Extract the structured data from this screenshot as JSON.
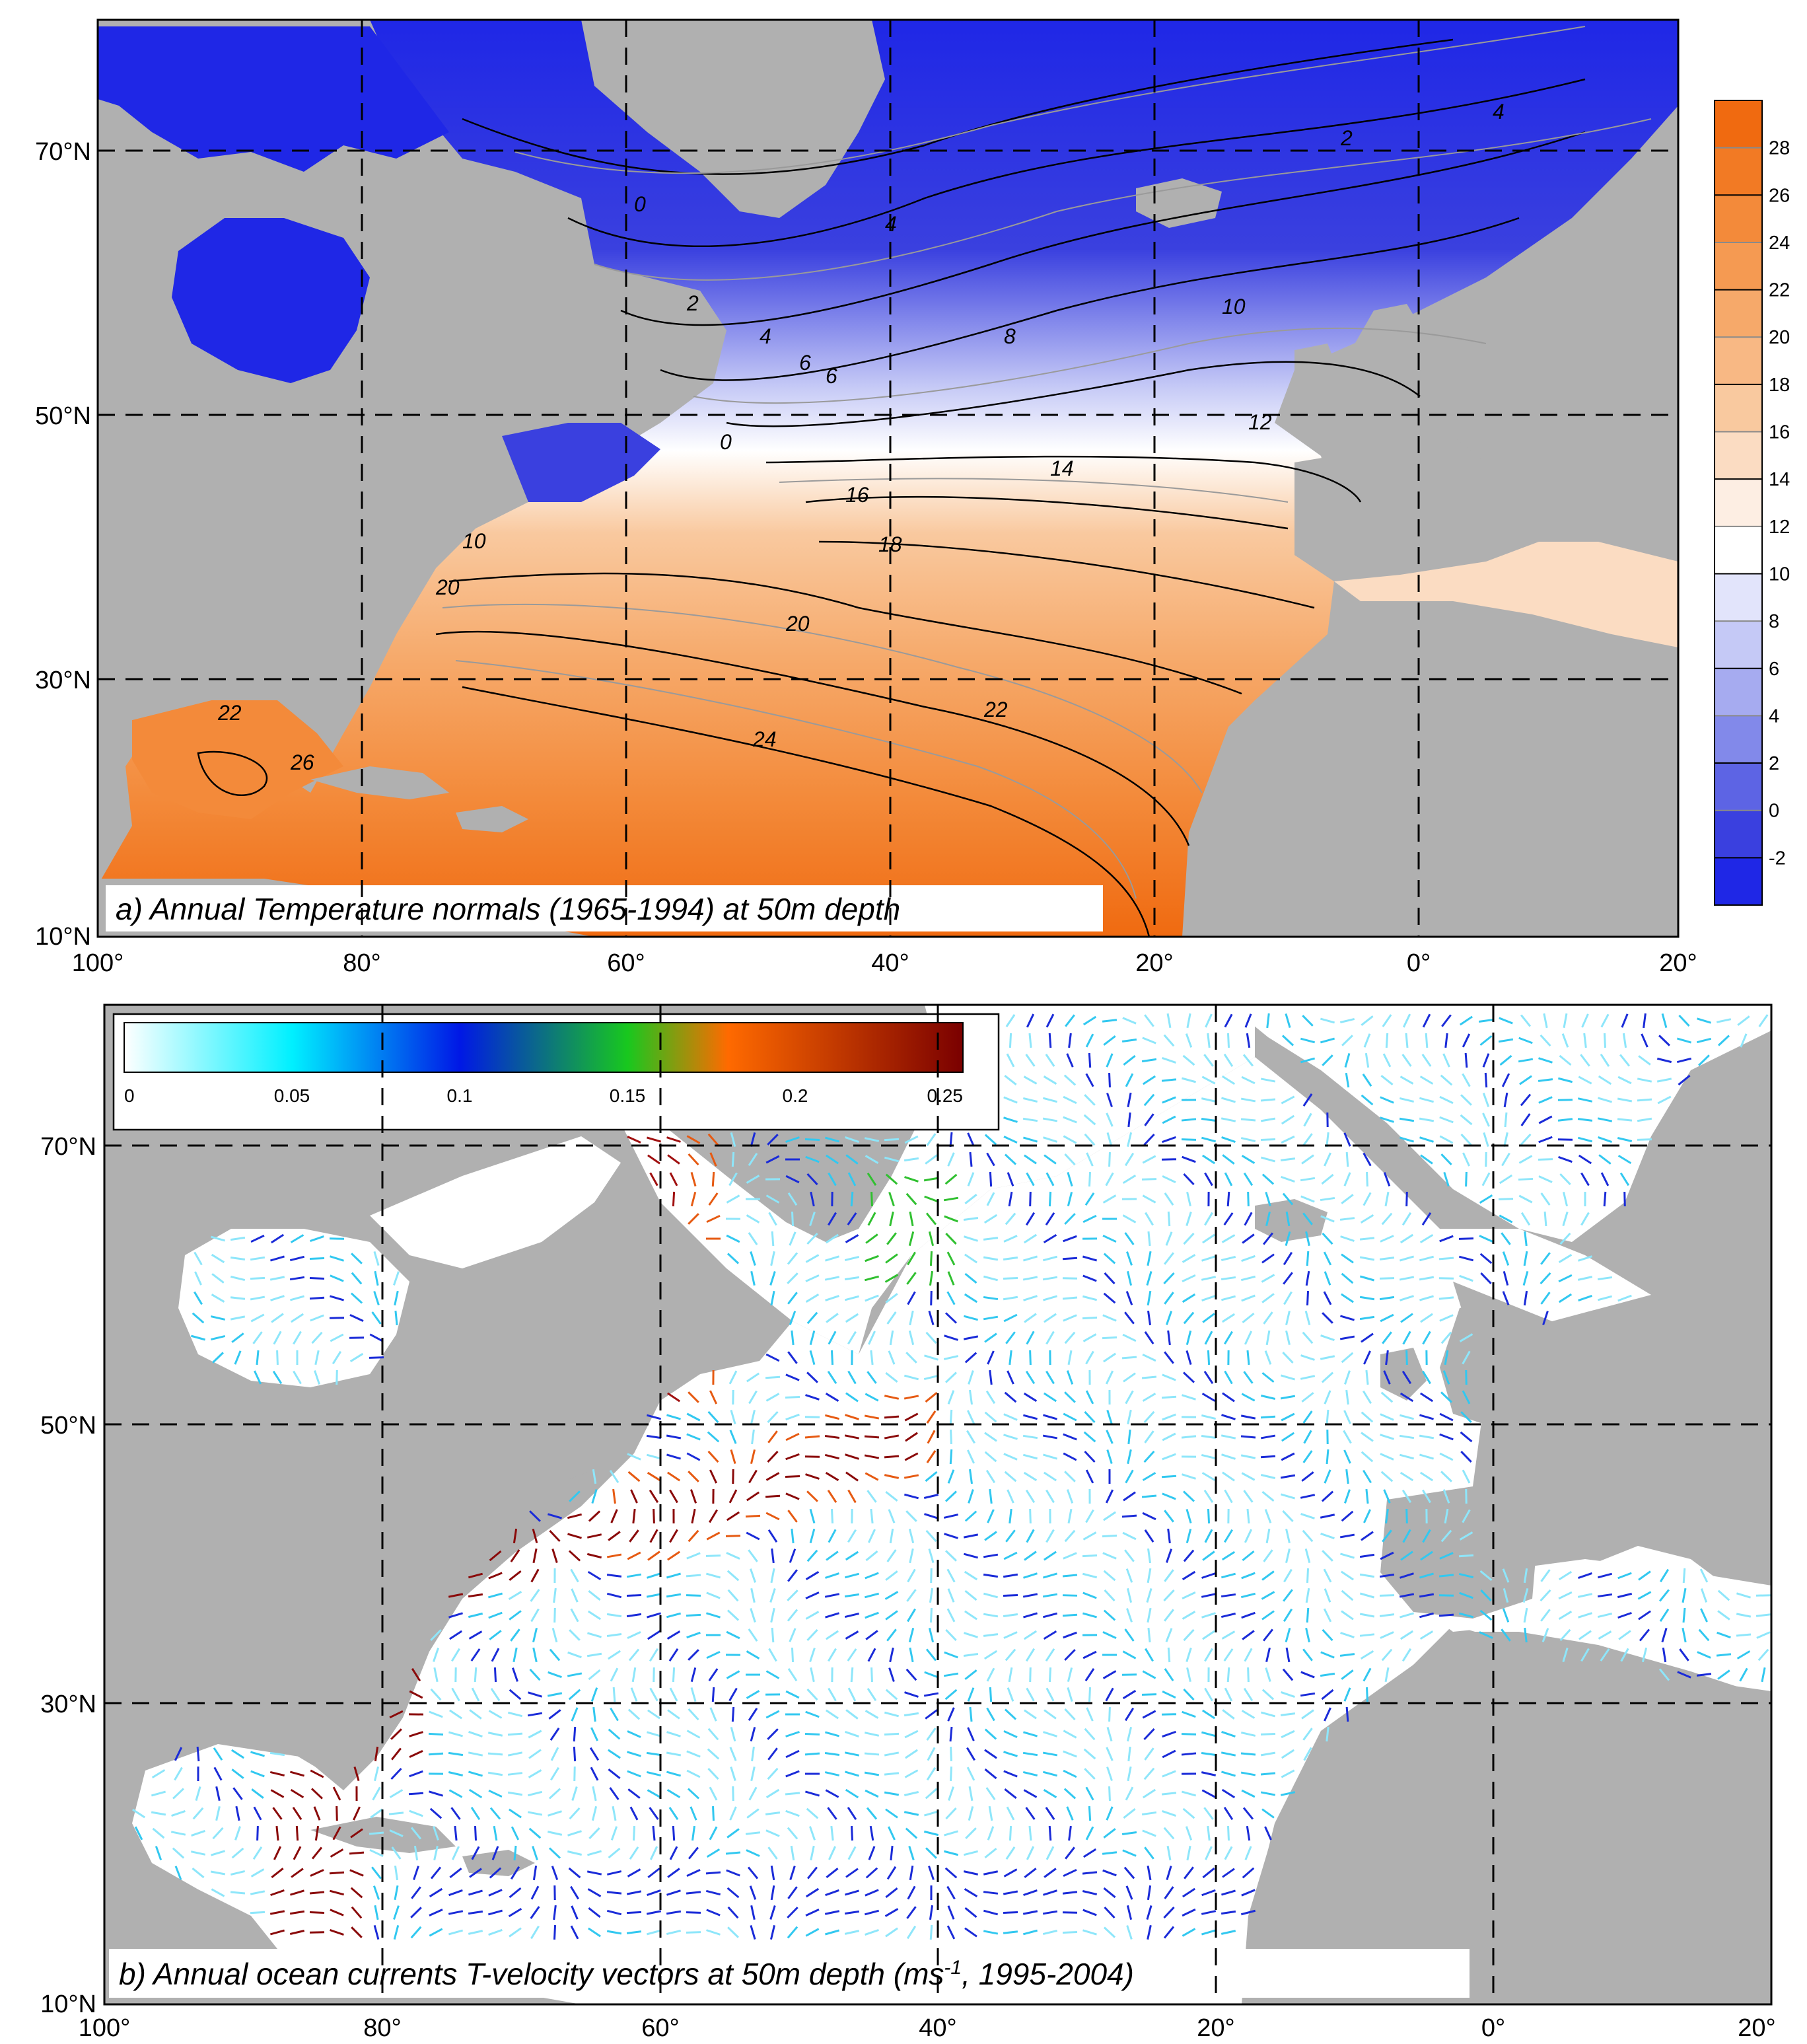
{
  "colors": {
    "land": "#b0b0b0",
    "land_light": "#d6d6d6",
    "cold": "#1f27e6",
    "warm": "#f47a2a",
    "grid": "#000000"
  },
  "panel_a": {
    "caption": "a) Annual Temperature normals (1965-1994) at 50m depth",
    "y_ticks": [
      "70°N",
      "50°N",
      "30°N",
      "10°N"
    ],
    "x_ticks": [
      "100°",
      "80°",
      "60°",
      "40°",
      "20°",
      "0°",
      "20°"
    ],
    "colorbar": {
      "labels": [
        "28",
        "26",
        "24",
        "22",
        "20",
        "18",
        "16",
        "14",
        "12",
        "10",
        "8",
        "6",
        "4",
        "2",
        "0",
        "-2"
      ],
      "colors": [
        "#f06a10",
        "#f27a24",
        "#f38a3a",
        "#f59a52",
        "#f6a96a",
        "#f8b884",
        "#f9c99f",
        "#fbdcc2",
        "#fdeee3",
        "#ffffff",
        "#e2e4fb",
        "#c5c9f6",
        "#a6abf0",
        "#8289ea",
        "#5d64e4",
        "#3a40df",
        "#1f27e6"
      ]
    },
    "isotherm_labels": [
      "0",
      "2",
      "4",
      "6",
      "8",
      "10",
      "12",
      "14",
      "16",
      "18",
      "20",
      "22",
      "24",
      "26",
      "22",
      "20",
      "10",
      "0",
      "4",
      "6",
      "2",
      "4"
    ]
  },
  "panel_b": {
    "caption_main": "b) Annual ocean currents T-velocity vectors at 50m depth (ms",
    "caption_sup": "-1",
    "caption_tail": ", 1995-2004)",
    "y_ticks": [
      "70°N",
      "50°N",
      "30°N",
      "10°N"
    ],
    "x_ticks": [
      "100°",
      "80°",
      "60°",
      "40°",
      "20°",
      "0°",
      "20°"
    ],
    "colorbar": {
      "labels": [
        "0",
        "0.05",
        "0.1",
        "0.15",
        "0.2",
        "0.25"
      ],
      "stops": [
        "#ffffff",
        "#00f0ff",
        "#0018e6",
        "#18c81e",
        "#ff6a00",
        "#7a0000"
      ]
    }
  }
}
